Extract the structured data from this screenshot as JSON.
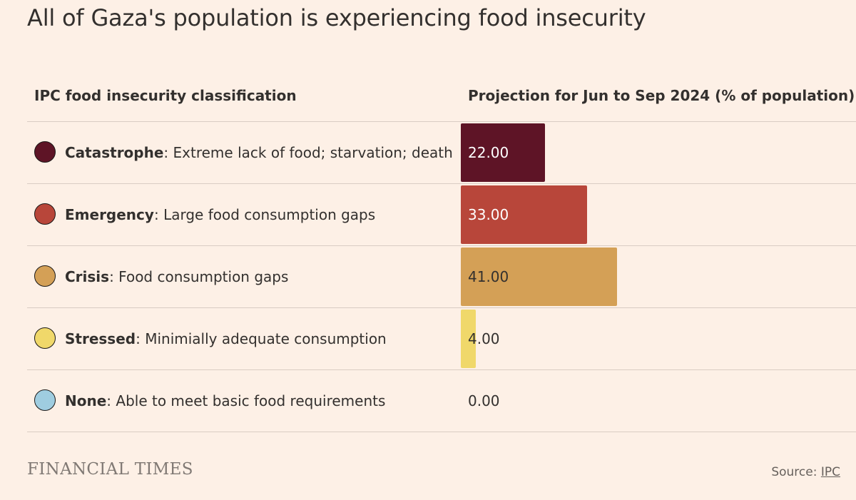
{
  "chart_data": {
    "type": "bar",
    "title": "All of Gaza's population is experiencing food insecurity",
    "label_header": "IPC food insecurity classification",
    "value_header": "Projection for Jun to Sep 2024 (% of population)",
    "xlim": [
      0,
      100
    ],
    "rows": [
      {
        "category": "Catastrophe",
        "description": "Extreme lack of food; starvation; death",
        "value": 22,
        "value_label": "22.00",
        "color": "#5e1426",
        "text_color": "#ffffff"
      },
      {
        "category": "Emergency",
        "description": "Large food consumption gaps",
        "value": 33,
        "value_label": "33.00",
        "color": "#b8463a",
        "text_color": "#ffffff"
      },
      {
        "category": "Crisis",
        "description": "Food consumption gaps",
        "value": 41,
        "value_label": "41.00",
        "color": "#d4a056",
        "text_color": "#33302e"
      },
      {
        "category": "Stressed",
        "description": "Minimially adequate consumption",
        "value": 4,
        "value_label": "4.00",
        "color": "#f0d86a",
        "text_color": "#33302e"
      },
      {
        "category": "None",
        "description": "Able to meet basic food requirements",
        "value": 0,
        "value_label": "0.00",
        "color": "#9fcde0",
        "text_color": "#33302e"
      }
    ]
  },
  "footer": {
    "brand": "FINANCIAL TIMES",
    "source_label": "Source: ",
    "source_link": "IPC"
  }
}
